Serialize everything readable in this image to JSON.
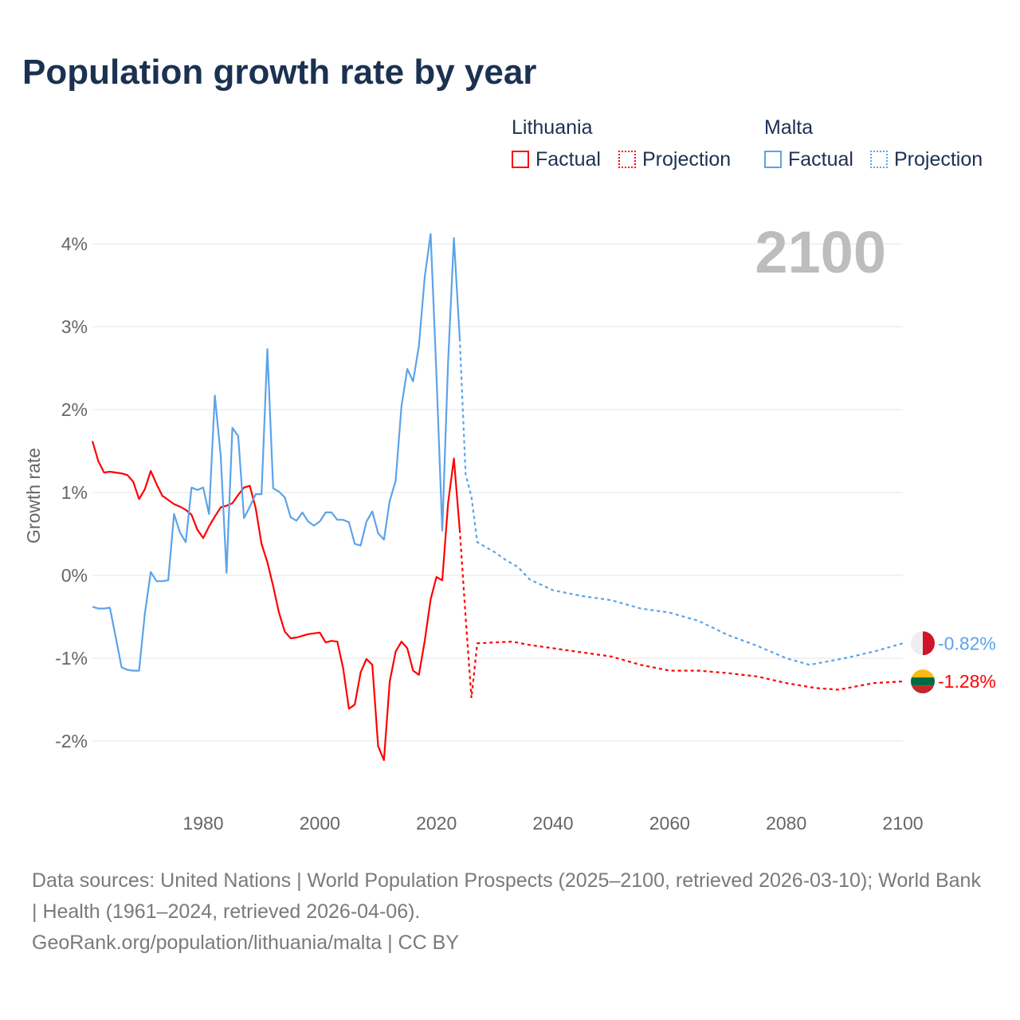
{
  "title": "Population growth rate by year",
  "legend": {
    "groups": [
      {
        "name": "Lithuania",
        "factual": "Factual",
        "projection": "Projection",
        "color": "#ff0000"
      },
      {
        "name": "Malta",
        "factual": "Factual",
        "projection": "Projection",
        "color": "#5ba3ea"
      }
    ]
  },
  "year_label": "2100",
  "footer": {
    "sources": "Data sources: United Nations | World Population Prospects (2025–2100, retrieved 2026-03-10); World Bank | Health (1961–2024, retrieved 2026-04-06).",
    "credit": "GeoRank.org/population/lithuania/malta | CC BY"
  },
  "chart_data": {
    "type": "line",
    "title": "Population growth rate by year",
    "xlabel": "",
    "ylabel": "Growth rate",
    "xlim": [
      1961,
      2100
    ],
    "ylim": [
      -2.7,
      4.3
    ],
    "xticks": [
      1980,
      2000,
      2020,
      2040,
      2060,
      2080,
      2100
    ],
    "xtick_labels": [
      "1980",
      "2000",
      "2020",
      "2040",
      "2060",
      "2080",
      "2100"
    ],
    "yticks": [
      -2,
      -1,
      0,
      1,
      2,
      3,
      4
    ],
    "ytick_labels": [
      "-2%",
      "-1%",
      "0%",
      "1%",
      "2%",
      "3%",
      "4%"
    ],
    "grid": true,
    "legend_position": "top-right",
    "series": [
      {
        "name": "Lithuania",
        "color": "#ff0000",
        "end_label": "-1.28%",
        "factual_start": 1961,
        "factual": [
          1.62,
          1.38,
          1.24,
          1.25,
          1.24,
          1.23,
          1.21,
          1.13,
          0.92,
          1.04,
          1.26,
          1.1,
          0.96,
          0.91,
          0.86,
          0.83,
          0.79,
          0.73,
          0.55,
          0.45,
          0.59,
          0.71,
          0.82,
          0.84,
          0.87,
          0.97,
          1.06,
          1.08,
          0.81,
          0.38,
          0.16,
          -0.13,
          -0.45,
          -0.68,
          -0.76,
          -0.75,
          -0.73,
          -0.71,
          -0.7,
          -0.69,
          -0.81,
          -0.79,
          -0.8,
          -1.12,
          -1.61,
          -1.56,
          -1.17,
          -1.01,
          -1.08,
          -2.06,
          -2.23,
          -1.28,
          -0.92,
          -0.8,
          -0.88,
          -1.15,
          -1.2,
          -0.79,
          -0.29,
          -0.02,
          -0.06,
          0.87,
          1.41,
          0.55
        ],
        "projection": [
          [
            2025,
            -0.5
          ],
          [
            2026,
            -1.48
          ],
          [
            2027,
            -0.82
          ],
          [
            2030,
            -0.81
          ],
          [
            2033,
            -0.8
          ],
          [
            2036,
            -0.84
          ],
          [
            2040,
            -0.88
          ],
          [
            2045,
            -0.93
          ],
          [
            2050,
            -0.98
          ],
          [
            2055,
            -1.08
          ],
          [
            2060,
            -1.15
          ],
          [
            2065,
            -1.15
          ],
          [
            2070,
            -1.18
          ],
          [
            2075,
            -1.22
          ],
          [
            2080,
            -1.3
          ],
          [
            2085,
            -1.36
          ],
          [
            2089,
            -1.38
          ],
          [
            2095,
            -1.3
          ],
          [
            2100,
            -1.28
          ]
        ]
      },
      {
        "name": "Malta",
        "color": "#5ba3ea",
        "end_label": "-0.82%",
        "factual_start": 1961,
        "factual": [
          -0.38,
          -0.4,
          -0.4,
          -0.39,
          -0.75,
          -1.11,
          -1.14,
          -1.15,
          -1.15,
          -0.46,
          0.04,
          -0.07,
          -0.07,
          -0.06,
          0.74,
          0.52,
          0.4,
          1.06,
          1.03,
          1.06,
          0.74,
          2.17,
          1.44,
          0.03,
          1.78,
          1.68,
          0.69,
          0.83,
          0.98,
          0.98,
          2.73,
          1.05,
          1.01,
          0.94,
          0.7,
          0.66,
          0.76,
          0.65,
          0.6,
          0.65,
          0.76,
          0.76,
          0.67,
          0.67,
          0.64,
          0.38,
          0.36,
          0.65,
          0.77,
          0.51,
          0.43,
          0.9,
          1.14,
          2.04,
          2.49,
          2.34,
          2.77,
          3.6,
          4.12,
          2.42,
          0.54,
          2.57,
          4.07,
          2.86
        ],
        "projection": [
          [
            2025,
            1.22
          ],
          [
            2026,
            0.95
          ],
          [
            2027,
            0.4
          ],
          [
            2028,
            0.36
          ],
          [
            2030,
            0.28
          ],
          [
            2032,
            0.18
          ],
          [
            2034,
            0.1
          ],
          [
            2036,
            -0.05
          ],
          [
            2040,
            -0.18
          ],
          [
            2045,
            -0.25
          ],
          [
            2050,
            -0.3
          ],
          [
            2055,
            -0.4
          ],
          [
            2060,
            -0.45
          ],
          [
            2065,
            -0.55
          ],
          [
            2070,
            -0.72
          ],
          [
            2075,
            -0.85
          ],
          [
            2080,
            -1.0
          ],
          [
            2084,
            -1.08
          ],
          [
            2090,
            -1.0
          ],
          [
            2095,
            -0.92
          ],
          [
            2100,
            -0.82
          ]
        ]
      }
    ]
  }
}
